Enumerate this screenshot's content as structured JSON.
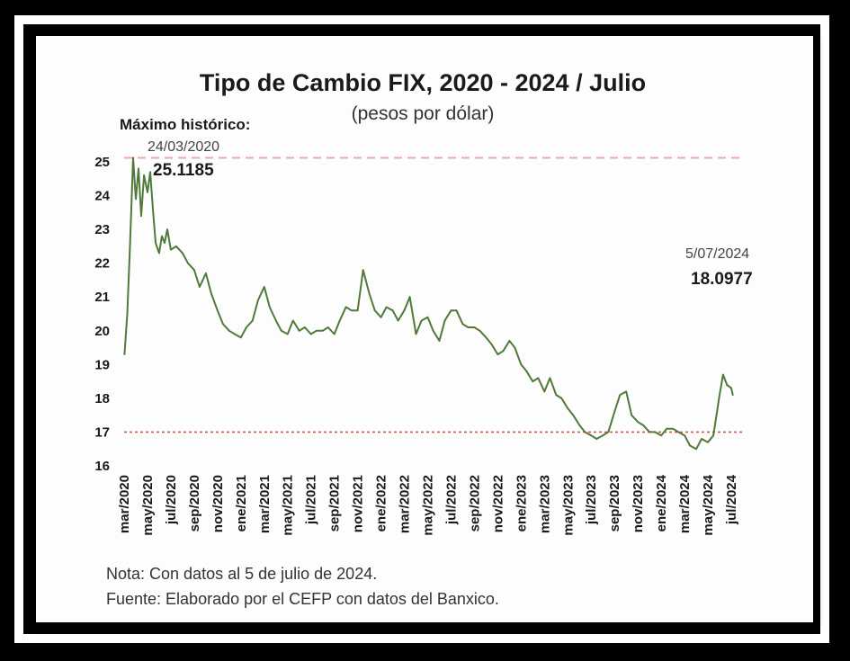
{
  "chart_data": {
    "type": "line",
    "title": "Tipo de Cambio FIX, 2020 - 2024 / Julio",
    "subtitle": "(pesos por dólar)",
    "xlabel": "",
    "ylabel": "",
    "ylim": [
      16,
      25
    ],
    "yticks": [
      "16",
      "17",
      "18",
      "19",
      "20",
      "21",
      "22",
      "23",
      "24",
      "25"
    ],
    "xlim": [
      "2020-03",
      "2024-07"
    ],
    "xtick_labels": [
      "mar/2020",
      "may/2020",
      "jul/2020",
      "sep/2020",
      "nov/2020",
      "ene/2021",
      "mar/2021",
      "may/2021",
      "jul/2021",
      "sep/2021",
      "nov/2021",
      "ene/2022",
      "mar/2022",
      "may/2022",
      "jul/2022",
      "sep/2022",
      "nov/2022",
      "ene/2023",
      "mar/2023",
      "may/2023",
      "jul/2023",
      "sep/2023",
      "nov/2023",
      "ene/2024",
      "mar/2024",
      "may/2024",
      "jul/2024"
    ],
    "grid": false,
    "line_color": "#4f7a3a",
    "reference_line_color": "#d9534f",
    "series": [
      {
        "x": [
          "2020-03-02",
          "2020-03-09",
          "2020-03-16",
          "2020-03-24",
          "2020-04-01",
          "2020-04-08",
          "2020-04-15",
          "2020-04-22",
          "2020-05-01",
          "2020-05-08",
          "2020-05-15",
          "2020-05-22",
          "2020-06-01",
          "2020-06-08",
          "2020-06-15",
          "2020-06-22",
          "2020-07-01",
          "2020-07-15",
          "2020-08-01",
          "2020-08-15",
          "2020-09-01",
          "2020-09-15",
          "2020-10-01",
          "2020-10-15",
          "2020-11-01",
          "2020-11-15",
          "2020-12-01",
          "2020-12-15",
          "2021-01-01",
          "2021-01-15",
          "2021-02-01",
          "2021-02-15",
          "2021-03-01",
          "2021-03-15",
          "2021-04-01",
          "2021-04-15",
          "2021-05-01",
          "2021-05-15",
          "2021-06-01",
          "2021-06-15",
          "2021-07-01",
          "2021-07-15",
          "2021-08-01",
          "2021-08-15",
          "2021-09-01",
          "2021-09-15",
          "2021-10-01",
          "2021-10-15",
          "2021-11-01",
          "2021-11-15",
          "2021-12-01",
          "2021-12-15",
          "2022-01-01",
          "2022-01-15",
          "2022-02-01",
          "2022-02-15",
          "2022-03-01",
          "2022-03-15",
          "2022-04-01",
          "2022-04-15",
          "2022-05-01",
          "2022-05-15",
          "2022-06-01",
          "2022-06-15",
          "2022-07-01",
          "2022-07-15",
          "2022-08-01",
          "2022-08-15",
          "2022-09-01",
          "2022-09-15",
          "2022-10-01",
          "2022-10-15",
          "2022-11-01",
          "2022-11-15",
          "2022-12-01",
          "2022-12-15",
          "2023-01-01",
          "2023-01-15",
          "2023-02-01",
          "2023-02-15",
          "2023-03-01",
          "2023-03-15",
          "2023-04-01",
          "2023-04-15",
          "2023-05-01",
          "2023-05-15",
          "2023-06-01",
          "2023-06-15",
          "2023-07-01",
          "2023-07-15",
          "2023-08-01",
          "2023-08-15",
          "2023-09-01",
          "2023-09-15",
          "2023-10-01",
          "2023-10-15",
          "2023-11-01",
          "2023-11-15",
          "2023-12-01",
          "2023-12-15",
          "2024-01-01",
          "2024-01-15",
          "2024-02-01",
          "2024-02-15",
          "2024-03-01",
          "2024-03-15",
          "2024-04-01",
          "2024-04-15",
          "2024-05-01",
          "2024-05-15",
          "2024-06-01",
          "2024-06-10",
          "2024-06-20",
          "2024-07-01",
          "2024-07-05"
        ],
        "y": [
          19.3,
          20.5,
          22.5,
          25.1185,
          23.9,
          24.8,
          23.4,
          24.6,
          24.1,
          24.7,
          23.6,
          22.6,
          22.3,
          22.8,
          22.6,
          23.0,
          22.4,
          22.5,
          22.3,
          22.0,
          21.8,
          21.3,
          21.7,
          21.1,
          20.6,
          20.2,
          20.0,
          19.9,
          19.8,
          20.1,
          20.3,
          20.9,
          21.3,
          20.7,
          20.3,
          20.0,
          19.9,
          20.3,
          20.0,
          20.1,
          19.9,
          20.0,
          20.0,
          20.1,
          19.9,
          20.3,
          20.7,
          20.6,
          20.6,
          21.8,
          21.1,
          20.6,
          20.4,
          20.7,
          20.6,
          20.3,
          20.6,
          21.0,
          19.9,
          20.3,
          20.4,
          20.0,
          19.7,
          20.3,
          20.6,
          20.6,
          20.2,
          20.1,
          20.1,
          20.0,
          19.8,
          19.6,
          19.3,
          19.4,
          19.7,
          19.5,
          19.0,
          18.8,
          18.5,
          18.6,
          18.2,
          18.6,
          18.1,
          18.0,
          17.7,
          17.5,
          17.2,
          17.0,
          16.9,
          16.8,
          16.9,
          17.0,
          17.6,
          18.1,
          18.2,
          17.5,
          17.3,
          17.2,
          17.0,
          17.0,
          16.9,
          17.1,
          17.1,
          17.0,
          16.9,
          16.6,
          16.5,
          16.8,
          16.7,
          16.9,
          18.1,
          18.7,
          18.4,
          18.3,
          18.0977
        ]
      }
    ],
    "reference_lines": [
      {
        "y": 25.1185,
        "style": "dashed"
      },
      {
        "y": 17.0,
        "style": "dotted"
      }
    ],
    "annotations": [
      {
        "heading": "Máximo histórico:",
        "label": "24/03/2020",
        "value": "25.1185",
        "x": "2020-03-24",
        "y": 25.1185
      },
      {
        "label": "5/07/2024",
        "value": "18.0977",
        "x": "2024-07-05",
        "y": 18.0977
      }
    ]
  },
  "notes": {
    "note": "Nota: Con datos al 5 de julio de 2024.",
    "source": "Fuente: Elaborado por el CEFP con datos del Banxico."
  }
}
